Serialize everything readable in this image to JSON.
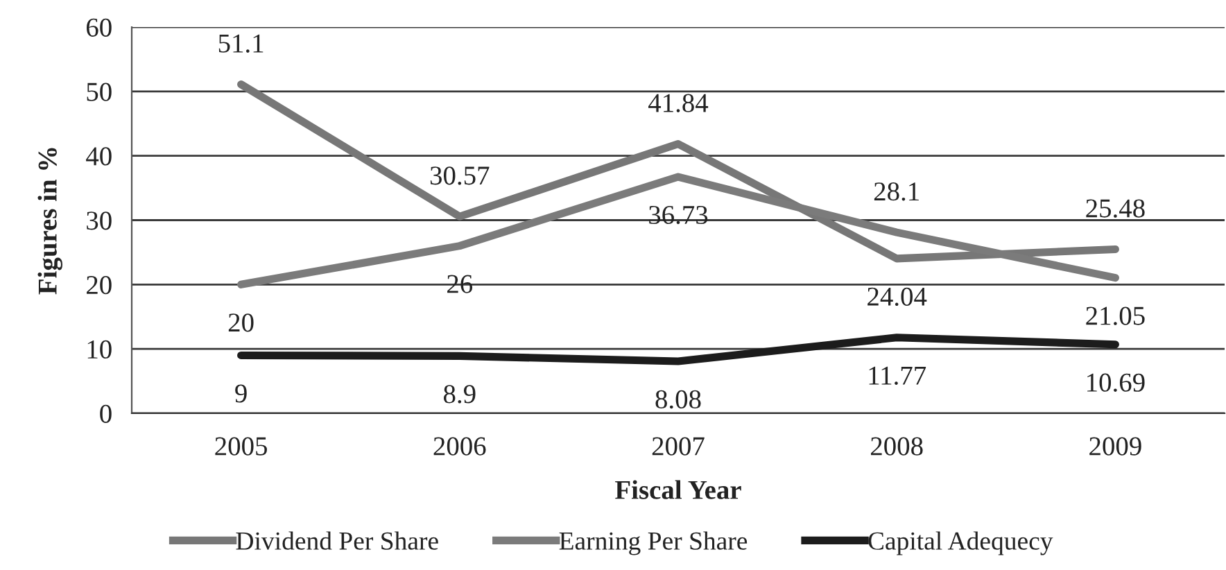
{
  "chart_data": {
    "type": "line",
    "xlabel": "Fiscal Year",
    "ylabel": "Figures in %",
    "categories": [
      "2005",
      "2006",
      "2007",
      "2008",
      "2009"
    ],
    "series": [
      {
        "name": "Dividend Per Share",
        "color": "#777777",
        "values": [
          51.1,
          30.57,
          41.84,
          24.04,
          25.48
        ]
      },
      {
        "name": "Earning Per Share",
        "color": "#7b7b7b",
        "values": [
          20,
          26,
          36.73,
          28.1,
          21.05
        ]
      },
      {
        "name": "Capital Adequecy",
        "color": "#1c1c1c",
        "values": [
          9,
          8.9,
          8.08,
          11.77,
          10.69
        ]
      }
    ],
    "ylim": [
      0,
      60
    ],
    "yticks": [
      0,
      10,
      20,
      30,
      40,
      50,
      60
    ],
    "grid": "y",
    "legend": "bottom",
    "data_labels": true
  }
}
